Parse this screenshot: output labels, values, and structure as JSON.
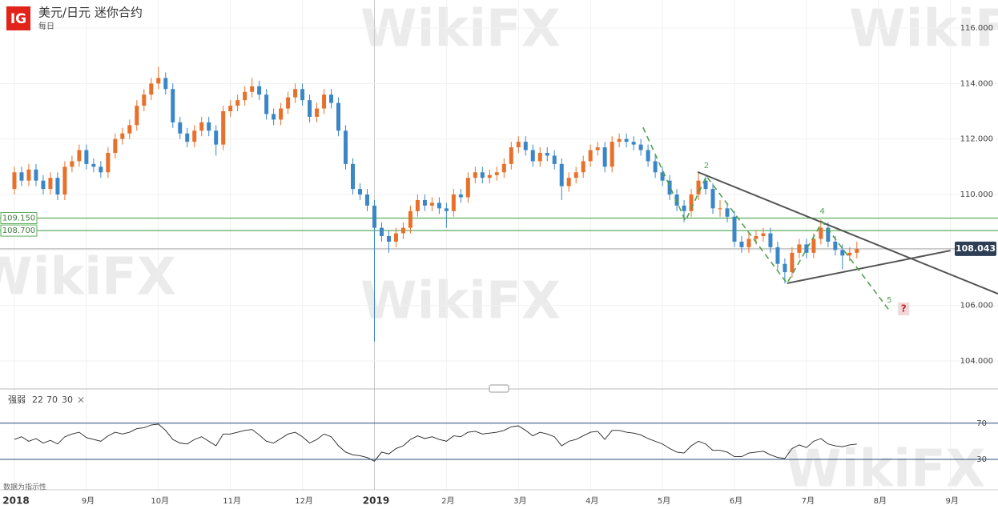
{
  "chart_data": [
    {
      "type": "candlestick",
      "logo": "IG",
      "title": "美元/日元 迷你合约",
      "subtitle": "每日",
      "watermark": "WikiFX",
      "up_color": "#e8702a",
      "down_color": "#3b86c6",
      "grid": true,
      "xlim": [
        7.8,
        21.66
      ],
      "ylim": [
        103.02,
        117.01
      ],
      "xticks": [
        {
          "value": 8,
          "label": "2018"
        },
        {
          "value": 9,
          "label": "9月"
        },
        {
          "value": 10,
          "label": "10月"
        },
        {
          "value": 11,
          "label": "11月"
        },
        {
          "value": 12,
          "label": "12月"
        },
        {
          "value": 13,
          "label": "2019"
        },
        {
          "value": 14,
          "label": "2月"
        },
        {
          "value": 15,
          "label": "3月"
        },
        {
          "value": 16,
          "label": "4月"
        },
        {
          "value": 17,
          "label": "5月"
        },
        {
          "value": 18,
          "label": "6月"
        },
        {
          "value": 19,
          "label": "7月"
        },
        {
          "value": 20,
          "label": "8月"
        },
        {
          "value": 21,
          "label": "9月"
        }
      ],
      "yticks": [
        {
          "value": 104,
          "label": "104.000"
        },
        {
          "value": 106,
          "label": "106.000"
        },
        {
          "value": 108,
          "label": "108.000"
        },
        {
          "value": 110,
          "label": "110.000"
        },
        {
          "value": 112,
          "label": "112.000"
        },
        {
          "value": 114,
          "label": "114.000"
        },
        {
          "value": 116,
          "label": "116.000"
        }
      ],
      "x": [
        8.0,
        8.1,
        8.2,
        8.3,
        8.4,
        8.5,
        8.6,
        8.7,
        8.8,
        8.9,
        9.0,
        9.1,
        9.2,
        9.3,
        9.4,
        9.5,
        9.6,
        9.7,
        9.8,
        9.9,
        10.0,
        10.1,
        10.2,
        10.3,
        10.4,
        10.5,
        10.6,
        10.7,
        10.8,
        10.9,
        11.0,
        11.1,
        11.2,
        11.3,
        11.4,
        11.5,
        11.6,
        11.7,
        11.8,
        11.9,
        12.0,
        12.1,
        12.2,
        12.3,
        12.4,
        12.5,
        12.6,
        12.7,
        12.8,
        12.9,
        13.0,
        13.1,
        13.2,
        13.3,
        13.4,
        13.5,
        13.6,
        13.7,
        13.8,
        13.9,
        14.0,
        14.1,
        14.2,
        14.3,
        14.4,
        14.5,
        14.6,
        14.7,
        14.8,
        14.9,
        15.0,
        15.1,
        15.2,
        15.3,
        15.4,
        15.5,
        15.6,
        15.7,
        15.8,
        15.9,
        16.0,
        16.1,
        16.2,
        16.3,
        16.4,
        16.5,
        16.6,
        16.7,
        16.8,
        16.9,
        17.0,
        17.1,
        17.2,
        17.3,
        17.4,
        17.5,
        17.6,
        17.7,
        17.8,
        17.9,
        18.0,
        18.1,
        18.2,
        18.3,
        18.4,
        18.5,
        18.6,
        18.7,
        18.8,
        18.9,
        19.0,
        19.1,
        19.2,
        19.3,
        19.4,
        19.5,
        19.6,
        19.7
      ],
      "ohlc": [
        [
          110.2,
          111.0,
          110.0,
          110.8
        ],
        [
          110.8,
          111.0,
          110.3,
          110.5
        ],
        [
          110.5,
          111.1,
          110.3,
          110.9
        ],
        [
          110.9,
          111.1,
          110.3,
          110.5
        ],
        [
          110.5,
          110.7,
          110.0,
          110.2
        ],
        [
          110.2,
          110.8,
          110.0,
          110.6
        ],
        [
          110.6,
          110.8,
          109.8,
          110.0
        ],
        [
          110.0,
          111.2,
          109.8,
          111.0
        ],
        [
          111.0,
          111.4,
          110.8,
          111.2
        ],
        [
          111.2,
          111.8,
          111.0,
          111.6
        ],
        [
          111.6,
          111.8,
          110.9,
          111.1
        ],
        [
          111.1,
          111.3,
          110.8,
          111.0
        ],
        [
          111.0,
          111.2,
          110.6,
          110.8
        ],
        [
          110.8,
          111.7,
          110.6,
          111.5
        ],
        [
          111.5,
          112.2,
          111.3,
          112.0
        ],
        [
          112.0,
          112.4,
          111.8,
          112.2
        ],
        [
          112.2,
          112.7,
          112.0,
          112.5
        ],
        [
          112.5,
          113.4,
          112.3,
          113.2
        ],
        [
          113.2,
          113.8,
          113.0,
          113.6
        ],
        [
          113.6,
          114.2,
          113.4,
          114.0
        ],
        [
          114.0,
          114.6,
          113.8,
          114.2
        ],
        [
          114.2,
          114.4,
          113.6,
          113.8
        ],
        [
          113.8,
          114.0,
          112.4,
          112.6
        ],
        [
          112.6,
          112.8,
          112.0,
          112.2
        ],
        [
          112.2,
          112.4,
          111.7,
          111.9
        ],
        [
          111.9,
          112.5,
          111.7,
          112.3
        ],
        [
          112.3,
          112.8,
          112.1,
          112.6
        ],
        [
          112.6,
          112.8,
          112.1,
          112.3
        ],
        [
          112.3,
          112.5,
          111.4,
          111.8
        ],
        [
          111.8,
          113.2,
          111.6,
          113.0
        ],
        [
          113.0,
          113.4,
          112.8,
          113.2
        ],
        [
          113.2,
          113.6,
          113.0,
          113.4
        ],
        [
          113.4,
          113.9,
          113.2,
          113.7
        ],
        [
          113.7,
          114.2,
          113.5,
          113.9
        ],
        [
          113.9,
          114.1,
          113.4,
          113.6
        ],
        [
          113.6,
          113.8,
          112.7,
          112.9
        ],
        [
          112.9,
          113.1,
          112.5,
          112.7
        ],
        [
          112.7,
          113.3,
          112.5,
          113.1
        ],
        [
          113.1,
          113.7,
          112.9,
          113.5
        ],
        [
          113.5,
          114.0,
          113.3,
          113.8
        ],
        [
          113.8,
          114.0,
          113.2,
          113.4
        ],
        [
          113.4,
          113.6,
          112.6,
          112.8
        ],
        [
          112.8,
          113.3,
          112.6,
          113.1
        ],
        [
          113.1,
          113.8,
          112.9,
          113.6
        ],
        [
          113.6,
          113.8,
          113.1,
          113.3
        ],
        [
          113.3,
          113.5,
          112.1,
          112.3
        ],
        [
          112.3,
          112.5,
          110.9,
          111.1
        ],
        [
          111.1,
          111.3,
          110.0,
          110.2
        ],
        [
          110.2,
          110.4,
          109.8,
          110.0
        ],
        [
          110.0,
          110.2,
          109.4,
          109.6
        ],
        [
          109.6,
          109.8,
          104.7,
          108.8
        ],
        [
          108.8,
          109.0,
          108.3,
          108.5
        ],
        [
          108.5,
          108.7,
          107.9,
          108.3
        ],
        [
          108.3,
          108.8,
          108.1,
          108.6
        ],
        [
          108.6,
          109.0,
          108.4,
          108.8
        ],
        [
          108.8,
          109.6,
          108.6,
          109.4
        ],
        [
          109.4,
          110.0,
          109.2,
          109.8
        ],
        [
          109.8,
          110.0,
          109.4,
          109.6
        ],
        [
          109.6,
          109.9,
          109.4,
          109.7
        ],
        [
          109.7,
          109.9,
          109.3,
          109.5
        ],
        [
          109.5,
          109.7,
          108.8,
          109.4
        ],
        [
          109.4,
          110.2,
          109.2,
          110.0
        ],
        [
          110.0,
          110.2,
          109.7,
          109.9
        ],
        [
          109.9,
          110.8,
          109.7,
          110.6
        ],
        [
          110.6,
          111.0,
          110.4,
          110.8
        ],
        [
          110.8,
          111.0,
          110.4,
          110.6
        ],
        [
          110.6,
          110.9,
          110.4,
          110.7
        ],
        [
          110.7,
          111.0,
          110.5,
          110.8
        ],
        [
          110.8,
          111.3,
          110.6,
          111.1
        ],
        [
          111.1,
          111.9,
          110.9,
          111.7
        ],
        [
          111.7,
          112.1,
          111.5,
          111.9
        ],
        [
          111.9,
          112.1,
          111.4,
          111.6
        ],
        [
          111.6,
          111.8,
          111.0,
          111.2
        ],
        [
          111.2,
          111.7,
          111.0,
          111.5
        ],
        [
          111.5,
          111.7,
          111.2,
          111.4
        ],
        [
          111.4,
          111.6,
          110.9,
          111.1
        ],
        [
          111.1,
          111.3,
          109.8,
          110.3
        ],
        [
          110.3,
          110.8,
          110.1,
          110.6
        ],
        [
          110.6,
          111.0,
          110.4,
          110.8
        ],
        [
          110.8,
          111.4,
          110.6,
          111.2
        ],
        [
          111.2,
          111.8,
          111.0,
          111.6
        ],
        [
          111.6,
          111.9,
          111.4,
          111.7
        ],
        [
          111.7,
          111.9,
          110.8,
          111.0
        ],
        [
          111.0,
          112.1,
          110.8,
          111.9
        ],
        [
          111.9,
          112.2,
          111.7,
          112.0
        ],
        [
          112.0,
          112.2,
          111.7,
          111.9
        ],
        [
          111.9,
          112.1,
          111.6,
          111.8
        ],
        [
          111.8,
          112.0,
          111.4,
          111.6
        ],
        [
          111.6,
          111.8,
          111.0,
          111.2
        ],
        [
          111.2,
          111.4,
          110.6,
          110.8
        ],
        [
          110.8,
          111.0,
          110.3,
          110.5
        ],
        [
          110.5,
          110.7,
          109.8,
          110.0
        ],
        [
          110.0,
          110.2,
          109.4,
          109.6
        ],
        [
          109.6,
          109.8,
          109.0,
          109.4
        ],
        [
          109.4,
          110.2,
          109.2,
          110.0
        ],
        [
          110.0,
          110.8,
          109.8,
          110.5
        ],
        [
          110.5,
          110.7,
          110.0,
          110.2
        ],
        [
          110.2,
          110.4,
          109.3,
          109.5
        ],
        [
          109.5,
          109.8,
          109.2,
          109.5
        ],
        [
          109.5,
          109.7,
          109.0,
          109.2
        ],
        [
          109.2,
          109.4,
          108.1,
          108.3
        ],
        [
          108.3,
          108.5,
          107.9,
          108.1
        ],
        [
          108.1,
          108.6,
          107.9,
          108.4
        ],
        [
          108.4,
          108.7,
          108.2,
          108.5
        ],
        [
          108.5,
          108.8,
          108.3,
          108.6
        ],
        [
          108.6,
          108.8,
          107.9,
          108.1
        ],
        [
          108.1,
          108.3,
          107.3,
          107.5
        ],
        [
          107.5,
          107.7,
          106.8,
          107.2
        ],
        [
          107.2,
          108.1,
          107.0,
          107.9
        ],
        [
          107.9,
          108.4,
          107.7,
          108.2
        ],
        [
          108.2,
          108.4,
          107.7,
          107.9
        ],
        [
          107.9,
          108.6,
          107.7,
          108.4
        ],
        [
          108.4,
          109.1,
          108.2,
          108.8
        ],
        [
          108.8,
          109.0,
          108.1,
          108.3
        ],
        [
          108.3,
          108.5,
          107.8,
          108.0
        ],
        [
          108.0,
          108.2,
          107.3,
          107.8
        ],
        [
          107.8,
          108.1,
          107.6,
          107.9
        ],
        [
          107.9,
          108.3,
          107.7,
          108.04
        ]
      ],
      "levels": [
        {
          "value": 109.15,
          "label": "109.150",
          "color": "#5cae5c"
        },
        {
          "value": 108.7,
          "label": "108.700",
          "color": "#5cae5c"
        }
      ],
      "last_price": {
        "value": 108.043,
        "label": "108.043",
        "color": "#2e3f55"
      },
      "trendline_color": "#555",
      "trendlines": [
        [
          [
            17.49,
            110.81
          ],
          [
            21.66,
            106.42
          ]
        ],
        [
          [
            18.73,
            106.8
          ],
          [
            21.0,
            107.98
          ]
        ]
      ],
      "wave_color": "#4fa24f",
      "wave": [
        [
          16.73,
          112.42
        ],
        [
          17.32,
          109.05
        ],
        [
          17.61,
          110.66
        ],
        [
          18.73,
          106.8
        ],
        [
          19.22,
          109.02
        ],
        [
          20.15,
          105.82
        ]
      ],
      "wave_labels": [
        null,
        null,
        "2",
        null,
        "4",
        "5"
      ],
      "question": "?"
    },
    {
      "type": "line",
      "name": "强弱",
      "params": [
        22,
        70,
        30
      ],
      "close": "×",
      "color": "#222",
      "note": "数据为指示性",
      "ylim": [
        7,
        91
      ],
      "yticks": [
        30,
        70
      ],
      "band_color": "#2e4a7a",
      "values": [
        52,
        55,
        50,
        53,
        48,
        51,
        47,
        55,
        58,
        60,
        54,
        52,
        50,
        56,
        60,
        58,
        60,
        64,
        65,
        68,
        69,
        62,
        52,
        48,
        47,
        52,
        55,
        50,
        45,
        58,
        58,
        60,
        62,
        63,
        57,
        50,
        48,
        53,
        58,
        60,
        55,
        48,
        52,
        58,
        55,
        45,
        38,
        35,
        34,
        32,
        28,
        38,
        36,
        42,
        45,
        52,
        56,
        53,
        55,
        52,
        50,
        56,
        55,
        60,
        61,
        58,
        59,
        60,
        62,
        66,
        67,
        62,
        56,
        60,
        58,
        55,
        45,
        50,
        52,
        56,
        60,
        61,
        52,
        62,
        62,
        60,
        59,
        57,
        53,
        50,
        47,
        42,
        38,
        37,
        45,
        50,
        47,
        40,
        40,
        38,
        33,
        33,
        37,
        38,
        39,
        35,
        32,
        31,
        42,
        46,
        43,
        50,
        53,
        47,
        45,
        44,
        46,
        47
      ]
    }
  ]
}
